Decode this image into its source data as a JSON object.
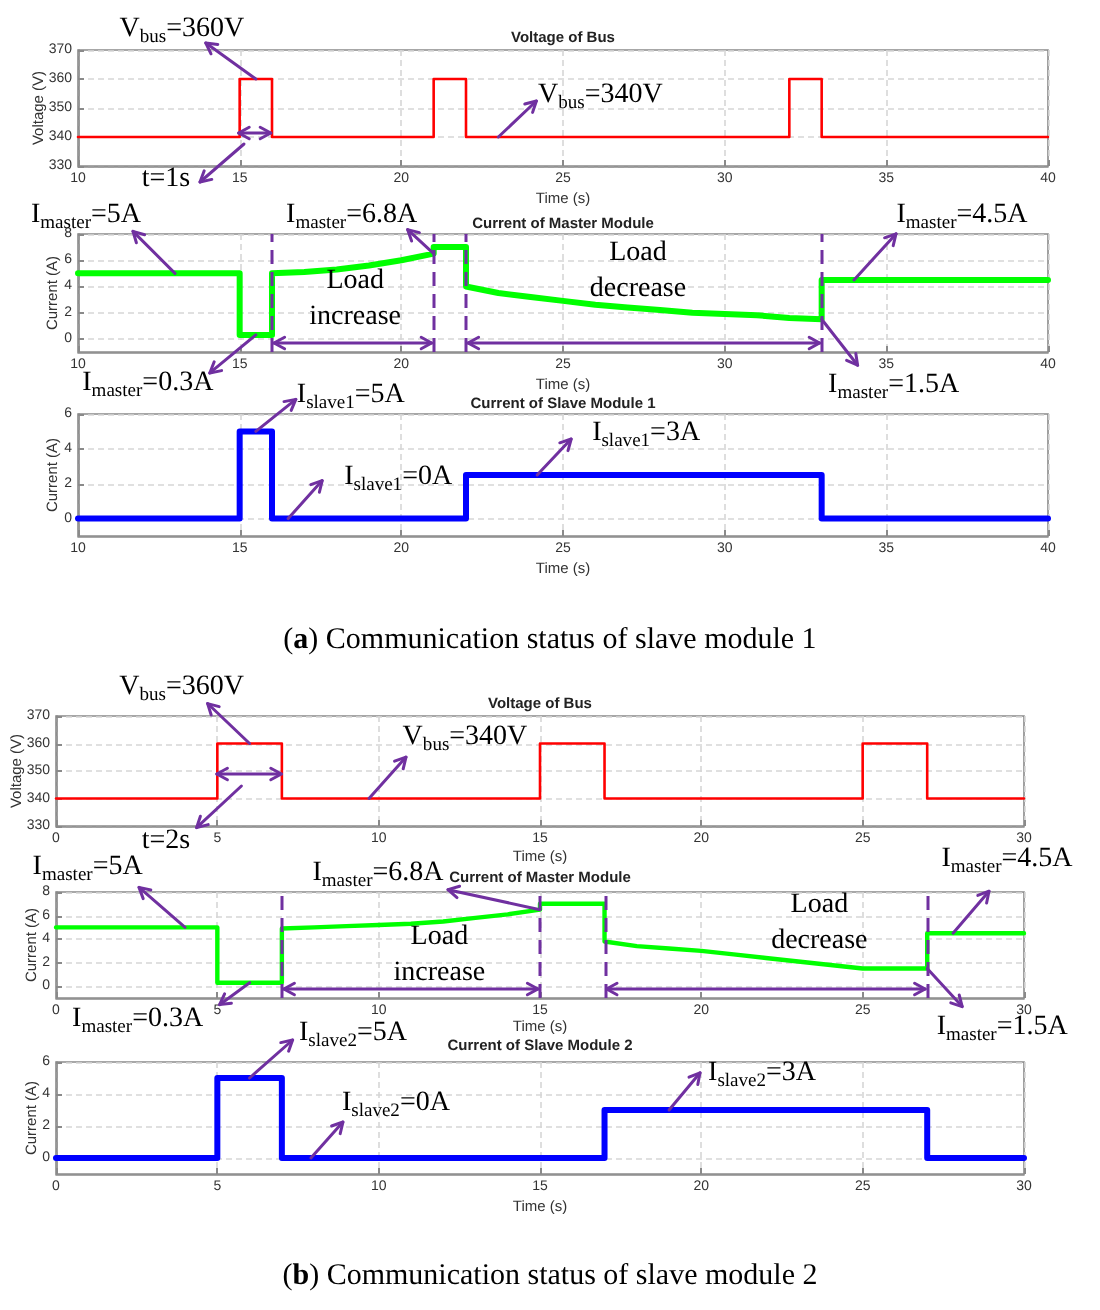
{
  "chart_data": [
    {
      "type": "line",
      "title": "Voltage of Bus",
      "xlabel": "Time (s)",
      "ylabel": "Voltage (V)",
      "xlim": [
        10,
        40
      ],
      "xticks": [
        10,
        15,
        20,
        25,
        30,
        35,
        40
      ],
      "ylim": [
        330,
        370
      ],
      "yticks": [
        330,
        340,
        350,
        360,
        370
      ],
      "grid": true,
      "series": [
        {
          "color": "#ff0000",
          "x": [
            10,
            15,
            15,
            16,
            16,
            21,
            21,
            22,
            22,
            32,
            32,
            33,
            33,
            40
          ],
          "values": [
            340,
            340,
            360,
            360,
            340,
            340,
            360,
            360,
            340,
            340,
            360,
            360,
            340,
            340
          ]
        }
      ],
      "annotations": [
        {
          "text": "V$_{bus}$=360V",
          "x": 15.5,
          "y": 360
        },
        {
          "text": "V$_{bus}$=340V",
          "x": 23,
          "y": 340
        },
        "t=1s"
      ]
    },
    {
      "type": "line",
      "title": "Current of Master Module",
      "xlabel": "Time (s)",
      "ylabel": "Current (A)",
      "xlim": [
        10,
        40
      ],
      "xticks": [
        10,
        15,
        20,
        25,
        30,
        35,
        40
      ],
      "ylim": [
        -1,
        8
      ],
      "yticks": [
        0,
        2,
        4,
        6,
        8
      ],
      "grid": true,
      "series": [
        {
          "color": "#00ff00",
          "x": [
            10,
            15,
            15,
            16,
            16,
            17,
            18,
            19,
            20,
            21,
            21,
            22,
            22,
            23,
            24,
            25,
            26,
            27,
            28,
            29,
            30,
            31,
            32,
            33,
            33,
            40
          ],
          "values": [
            5,
            5,
            0.3,
            0.3,
            5,
            5.1,
            5.3,
            5.6,
            6,
            6.5,
            7,
            7,
            4,
            3.5,
            3.2,
            2.9,
            2.6,
            2.4,
            2.2,
            2,
            1.9,
            1.8,
            1.6,
            1.5,
            4.5,
            4.5
          ]
        }
      ],
      "ref_lines": [
        {
          "axis": "x",
          "value": 16,
          "color": "#7030a0",
          "line_style": "dashed"
        },
        {
          "axis": "x",
          "value": 21,
          "color": "#7030a0",
          "line_style": "dashed"
        },
        {
          "axis": "x",
          "value": 22,
          "color": "#7030a0",
          "line_style": "dashed"
        },
        {
          "axis": "x",
          "value": 33,
          "color": "#7030a0",
          "line_style": "dashed"
        }
      ],
      "annotations": [
        {
          "text": "I$_{master}$=5A",
          "x": 13,
          "y": 5
        },
        {
          "text": "I$_{master}$=6.8A",
          "x": 21,
          "y": 6.5
        },
        {
          "text": "I$_{master}$=4.5A",
          "x": 34,
          "y": 4.5
        },
        {
          "text": "I$_{master}$=0.3A",
          "x": 15.5,
          "y": 0.3
        },
        {
          "text": "I$_{master}$=1.5A",
          "x": 33,
          "y": 1.5
        },
        "Load increase",
        "Load decrease"
      ]
    },
    {
      "type": "line",
      "title": "Current of Slave Module 1",
      "xlabel": "Time (s)",
      "ylabel": "Current (A)",
      "xlim": [
        10,
        40
      ],
      "xticks": [
        10,
        15,
        20,
        25,
        30,
        35,
        40
      ],
      "ylim": [
        -1,
        6
      ],
      "yticks": [
        0,
        2,
        4,
        6
      ],
      "grid": true,
      "series": [
        {
          "color": "#0000ff",
          "x": [
            10,
            15,
            15,
            16,
            16,
            22,
            22,
            33,
            33,
            40
          ],
          "values": [
            0,
            0,
            5,
            5,
            0,
            0,
            2.5,
            2.5,
            0,
            0
          ]
        }
      ],
      "annotations": [
        {
          "text": "I$_{slave1}$=5A",
          "x": 15.5,
          "y": 5
        },
        {
          "text": "I$_{slave1}$=0A",
          "x": 16.5,
          "y": 0
        },
        {
          "text": "I$_{slave1}$=3A",
          "x": 24.2,
          "y": 2.5
        },
        "(a) Communication status of slave module 1"
      ]
    },
    {
      "type": "line",
      "title": "Voltage of Bus",
      "xlabel": "Time (s)",
      "ylabel": "Voltage (V)",
      "xlim": [
        0,
        30
      ],
      "xticks": [
        0,
        5,
        10,
        15,
        20,
        25,
        30
      ],
      "ylim": [
        330,
        370
      ],
      "yticks": [
        330,
        340,
        350,
        360,
        370
      ],
      "grid": true,
      "series": [
        {
          "color": "#ff0000",
          "x": [
            0,
            5,
            5,
            7,
            7,
            15,
            15,
            17,
            17,
            25,
            25,
            27,
            27,
            30
          ],
          "values": [
            340,
            340,
            360,
            360,
            340,
            340,
            360,
            360,
            340,
            340,
            360,
            360,
            340,
            340
          ]
        }
      ],
      "annotations": [
        {
          "text": "V$_{bus}$=360V",
          "x": 6,
          "y": 360
        },
        {
          "text": "V$_{bus}$=340V",
          "x": 9.7,
          "y": 340
        },
        "t=2s"
      ]
    },
    {
      "type": "line",
      "title": "Current of Master Module",
      "xlabel": "Time (s)",
      "ylabel": "Current (A)",
      "xlim": [
        0,
        30
      ],
      "xticks": [
        0,
        5,
        10,
        15,
        20,
        25,
        30
      ],
      "ylim": [
        -1,
        8
      ],
      "yticks": [
        0,
        2,
        4,
        6,
        8
      ],
      "grid": true,
      "series": [
        {
          "color": "#00ff00",
          "x": [
            0,
            5,
            5,
            7,
            7,
            8,
            9,
            10,
            11,
            12,
            13,
            14,
            15,
            15,
            17,
            17,
            18,
            19,
            20,
            21,
            22,
            23,
            24,
            25,
            27,
            27,
            30
          ],
          "values": [
            5,
            5,
            0.3,
            0.3,
            4.9,
            5,
            5.1,
            5.2,
            5.3,
            5.5,
            5.8,
            6.1,
            6.5,
            7,
            7,
            3.8,
            3.4,
            3.2,
            3,
            2.7,
            2.4,
            2.1,
            1.8,
            1.5,
            1.5,
            4.5,
            4.5
          ]
        }
      ],
      "ref_lines": [
        {
          "axis": "x",
          "value": 7,
          "color": "#7030a0",
          "line_style": "dashed"
        },
        {
          "axis": "x",
          "value": 15,
          "color": "#7030a0",
          "line_style": "dashed"
        },
        {
          "axis": "x",
          "value": 17,
          "color": "#7030a0",
          "line_style": "dashed"
        },
        {
          "axis": "x",
          "value": 27,
          "color": "#7030a0",
          "line_style": "dashed"
        }
      ],
      "annotations": [
        {
          "text": "I$_{master}$=5A",
          "x": 4,
          "y": 5
        },
        {
          "text": "I$_{master}$=6.8A",
          "x": 15,
          "y": 6.5
        },
        {
          "text": "I$_{master}$=4.5A",
          "x": 27.8,
          "y": 4.5
        },
        {
          "text": "I$_{master}$=0.3A",
          "x": 6,
          "y": 0.3
        },
        {
          "text": "I$_{master}$=1.5A",
          "x": 27,
          "y": 1.5
        },
        "Load increase",
        "Load decrease"
      ]
    },
    {
      "type": "line",
      "title": "Current of Slave Module 2",
      "xlabel": "Time (s)",
      "ylabel": "Current (A)",
      "xlim": [
        0,
        30
      ],
      "xticks": [
        0,
        5,
        10,
        15,
        20,
        25,
        30
      ],
      "ylim": [
        -1,
        6
      ],
      "yticks": [
        0,
        2,
        4,
        6
      ],
      "grid": true,
      "series": [
        {
          "color": "#0000ff",
          "x": [
            0,
            5,
            5,
            7,
            7,
            17,
            17,
            27,
            27,
            30
          ],
          "values": [
            0,
            0,
            5,
            5,
            0,
            0,
            3,
            3,
            0,
            0
          ]
        }
      ],
      "annotations": [
        {
          "text": "I$_{slave2}$=5A",
          "x": 6,
          "y": 5
        },
        {
          "text": "I$_{slave2}$=0A",
          "x": 7.9,
          "y": 0
        },
        {
          "text": "I$_{slave2}$=3A",
          "x": 19,
          "y": 3
        },
        "(b) Communication status of slave module 2"
      ]
    }
  ]
}
